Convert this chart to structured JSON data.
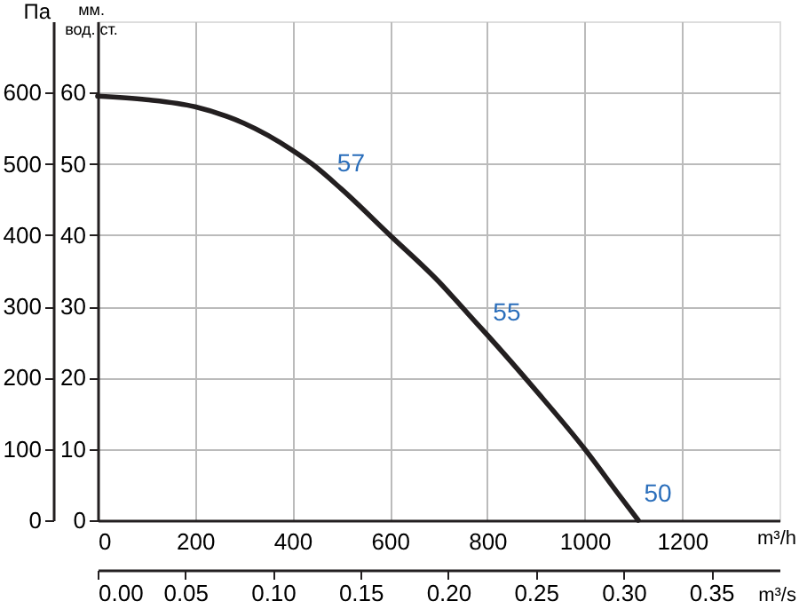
{
  "chart_data": {
    "type": "line",
    "xlabel": "m³/h",
    "x2label": "m³/s",
    "ylabel": "Па",
    "y2label": "мм. вод. ст.",
    "x": [
      0,
      100,
      200,
      300,
      400,
      440,
      500,
      600,
      700,
      760,
      800,
      900,
      1000,
      1070,
      1110
    ],
    "series": [
      {
        "color": "#231f20",
        "values": [
          595,
          590,
          580,
          557,
          519,
          500,
          465,
          400,
          335,
          290,
          260,
          182,
          100,
          36,
          0
        ]
      }
    ],
    "xlim": [
      0,
      1400
    ],
    "xticks": [
      0,
      200,
      400,
      600,
      800,
      1000,
      1200
    ],
    "x2lim": [
      0,
      0.3889
    ],
    "x2ticks": [
      {
        "value": 0,
        "label": "0.00"
      },
      0.05,
      {
        "value": 0.1,
        "label": "0.10"
      },
      0.15,
      {
        "value": 0.2,
        "label": "0.20"
      },
      0.25,
      {
        "value": 0.3,
        "label": "0.30"
      },
      0.35
    ],
    "ylim": [
      0,
      700
    ],
    "yticks": [
      0,
      100,
      200,
      300,
      400,
      500,
      600
    ],
    "y2lim": [
      0,
      70
    ],
    "y2ticks": [
      0,
      10,
      20,
      30,
      40,
      50,
      60
    ],
    "annotations": [
      {
        "text": "57",
        "x": 440,
        "y": 500
      },
      {
        "text": "55",
        "x": 760,
        "y": 290
      },
      {
        "text": "50",
        "x": 1070,
        "y": 36
      }
    ],
    "grid": true,
    "marker": "none",
    "line_style": "solid"
  }
}
